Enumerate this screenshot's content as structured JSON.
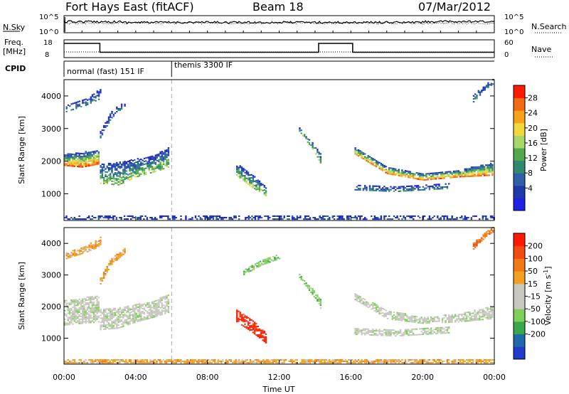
{
  "header": {
    "station": "Fort Hays East (fitACF)",
    "beam": "Beam 18",
    "date": "07/Mar/2012"
  },
  "noise_panel": {
    "left_label": "N.Sky",
    "right_label": "N.Search",
    "left_ticks": [
      "10^5",
      "10^0"
    ],
    "right_ticks": [
      "10^5",
      "10^0"
    ]
  },
  "freq_panel": {
    "left_label_line1": "Freq.",
    "left_label_line2": "[MHz]",
    "right_label": "Nave",
    "left_ticks": [
      "18",
      "8"
    ],
    "right_ticks": [
      "60",
      "0"
    ],
    "freq_steps": [
      {
        "t_start": 0.0,
        "t_end": 2.0,
        "freq_mhz": 16
      },
      {
        "t_start": 2.0,
        "t_end": 14.2,
        "freq_mhz": 11
      },
      {
        "t_start": 14.2,
        "t_end": 16.1,
        "freq_mhz": 16
      },
      {
        "t_start": 16.1,
        "t_end": 24.0,
        "freq_mhz": 11
      }
    ]
  },
  "cpid_panel": {
    "label": "CPID",
    "modes": [
      {
        "name": "normal (fast) 151 IF",
        "t_start": 0.0,
        "t_end": 6.0
      },
      {
        "name": "themis 3300 IF",
        "t_start": 6.0,
        "t_end": 24.0
      }
    ]
  },
  "chart_data": [
    {
      "type": "heatmap",
      "name": "power",
      "ylabel": "Slant Range [km]",
      "yticks": [
        1000,
        2000,
        3000,
        4000
      ],
      "ylim": [
        180,
        4500
      ],
      "xlim": [
        0,
        24
      ],
      "colorbar": {
        "label": "Power [dB]",
        "ticks": [
          4,
          8,
          12,
          16,
          20,
          24,
          28
        ],
        "levels": [
          "#1f1fe6",
          "#1e3aa8",
          "#2f5fa8",
          "#2f8a6e",
          "#52a84a",
          "#a9d86a",
          "#f2d83a",
          "#f7a21a",
          "#f26a12",
          "#ff1a00"
        ]
      },
      "bands": [
        {
          "t": [
            0.0,
            1.0,
            1.95
          ],
          "r1": [
            1850,
            1800,
            1900
          ],
          "r2": [
            2200,
            2250,
            2350
          ],
          "intensity": 0.9
        },
        {
          "t": [
            2.0,
            3.0,
            4.0,
            5.0,
            5.8
          ],
          "r1": [
            1300,
            1250,
            1500,
            1650,
            1800
          ],
          "r2": [
            1900,
            1950,
            2050,
            2150,
            2400
          ],
          "intensity": 0.55
        },
        {
          "t": [
            0.1,
            1.2,
            2.0
          ],
          "r1": [
            3500,
            3700,
            3900
          ],
          "r2": [
            3700,
            3900,
            4200
          ],
          "intensity": 0.3
        },
        {
          "t": [
            2.0,
            2.6,
            3.4
          ],
          "r1": [
            2700,
            3300,
            3700
          ],
          "r2": [
            2900,
            3500,
            3850
          ],
          "intensity": 0.25
        },
        {
          "t": [
            9.6,
            10.4,
            11.3
          ],
          "r1": [
            1550,
            1200,
            900
          ],
          "r2": [
            1900,
            1600,
            1150
          ],
          "intensity": 0.55
        },
        {
          "t": [
            13.1,
            13.9,
            14.3
          ],
          "r1": [
            2900,
            2300,
            1900
          ],
          "r2": [
            3000,
            2500,
            2200
          ],
          "intensity": 0.5
        },
        {
          "t": [
            16.2,
            18.0,
            20.0,
            22.0,
            23.9
          ],
          "r1": [
            2200,
            1600,
            1400,
            1500,
            1550
          ],
          "r2": [
            2400,
            1800,
            1600,
            1700,
            1950
          ],
          "intensity": 0.85
        },
        {
          "t": [
            16.2,
            18.5,
            21.5
          ],
          "r1": [
            1100,
            1050,
            1150
          ],
          "r2": [
            1250,
            1200,
            1300
          ],
          "intensity": 0.3
        },
        {
          "t": [
            22.8,
            23.5,
            23.9
          ],
          "r1": [
            3800,
            4200,
            4350
          ],
          "r2": [
            4000,
            4350,
            4500
          ],
          "intensity": 0.3
        },
        {
          "t": [
            0.0,
            24.0
          ],
          "r1": [
            200,
            200
          ],
          "r2": [
            330,
            330
          ],
          "intensity": 0.15
        }
      ]
    },
    {
      "type": "heatmap",
      "name": "velocity",
      "ylabel": "Slant Range [km]",
      "yticks": [
        1000,
        2000,
        3000,
        4000
      ],
      "ylim": [
        180,
        4500
      ],
      "xlim": [
        0,
        24
      ],
      "xlabel": "Time UT",
      "xticks": [
        "00:00",
        "04:00",
        "08:00",
        "12:00",
        "16:00",
        "20:00",
        "00:00"
      ],
      "colorbar": {
        "label": "Velocity [m s^-1]",
        "ticks": [
          200,
          100,
          50,
          15,
          -15,
          -50,
          -100,
          -200
        ],
        "levels": [
          "#1f3acc",
          "#1f6aa8",
          "#3aa84a",
          "#7fd05a",
          "#c8c8c0",
          "#c8c8c0",
          "#f2a020",
          "#f27a14",
          "#f24a10",
          "#ff1a00"
        ]
      },
      "bands": [
        {
          "t": [
            0.0,
            1.0,
            1.95
          ],
          "r1": [
            1400,
            1450,
            1500
          ],
          "r2": [
            2200,
            2250,
            2350
          ],
          "level": 4
        },
        {
          "t": [
            2.0,
            3.0,
            4.0,
            5.0,
            5.8
          ],
          "r1": [
            1250,
            1300,
            1500,
            1650,
            1800
          ],
          "r2": [
            1900,
            1950,
            2050,
            2150,
            2400
          ],
          "level": 4
        },
        {
          "t": [
            0.1,
            1.2,
            2.0
          ],
          "r1": [
            3500,
            3700,
            3900
          ],
          "r2": [
            3700,
            3900,
            4200
          ],
          "level": 6
        },
        {
          "t": [
            2.0,
            2.6,
            3.4
          ],
          "r1": [
            2700,
            3300,
            3700
          ],
          "r2": [
            2900,
            3500,
            3850
          ],
          "level": 6
        },
        {
          "t": [
            9.6,
            10.4,
            11.3
          ],
          "r1": [
            1500,
            1200,
            800
          ],
          "r2": [
            1900,
            1600,
            1100
          ],
          "level": 9
        },
        {
          "t": [
            13.1,
            13.9,
            14.3
          ],
          "r1": [
            2900,
            2300,
            1900
          ],
          "r2": [
            3000,
            2500,
            2200
          ],
          "level": 3
        },
        {
          "t": [
            10.0,
            11.0,
            12.0
          ],
          "r1": [
            3000,
            3300,
            3500
          ],
          "r2": [
            3150,
            3450,
            3650
          ],
          "level": 3
        },
        {
          "t": [
            16.2,
            18.0,
            20.0,
            22.0,
            23.9
          ],
          "r1": [
            2200,
            1600,
            1450,
            1500,
            1600
          ],
          "r2": [
            2400,
            1850,
            1650,
            1750,
            2000
          ],
          "level": 4
        },
        {
          "t": [
            16.2,
            18.5,
            21.5
          ],
          "r1": [
            1100,
            1050,
            1150
          ],
          "r2": [
            1300,
            1250,
            1350
          ],
          "level": 4
        },
        {
          "t": [
            22.8,
            23.5,
            23.9
          ],
          "r1": [
            3800,
            4200,
            4350
          ],
          "r2": [
            4000,
            4350,
            4500
          ],
          "level": 7
        },
        {
          "t": [
            0.0,
            24.0
          ],
          "r1": [
            200,
            200
          ],
          "r2": [
            330,
            330
          ],
          "level": 6
        }
      ]
    }
  ]
}
